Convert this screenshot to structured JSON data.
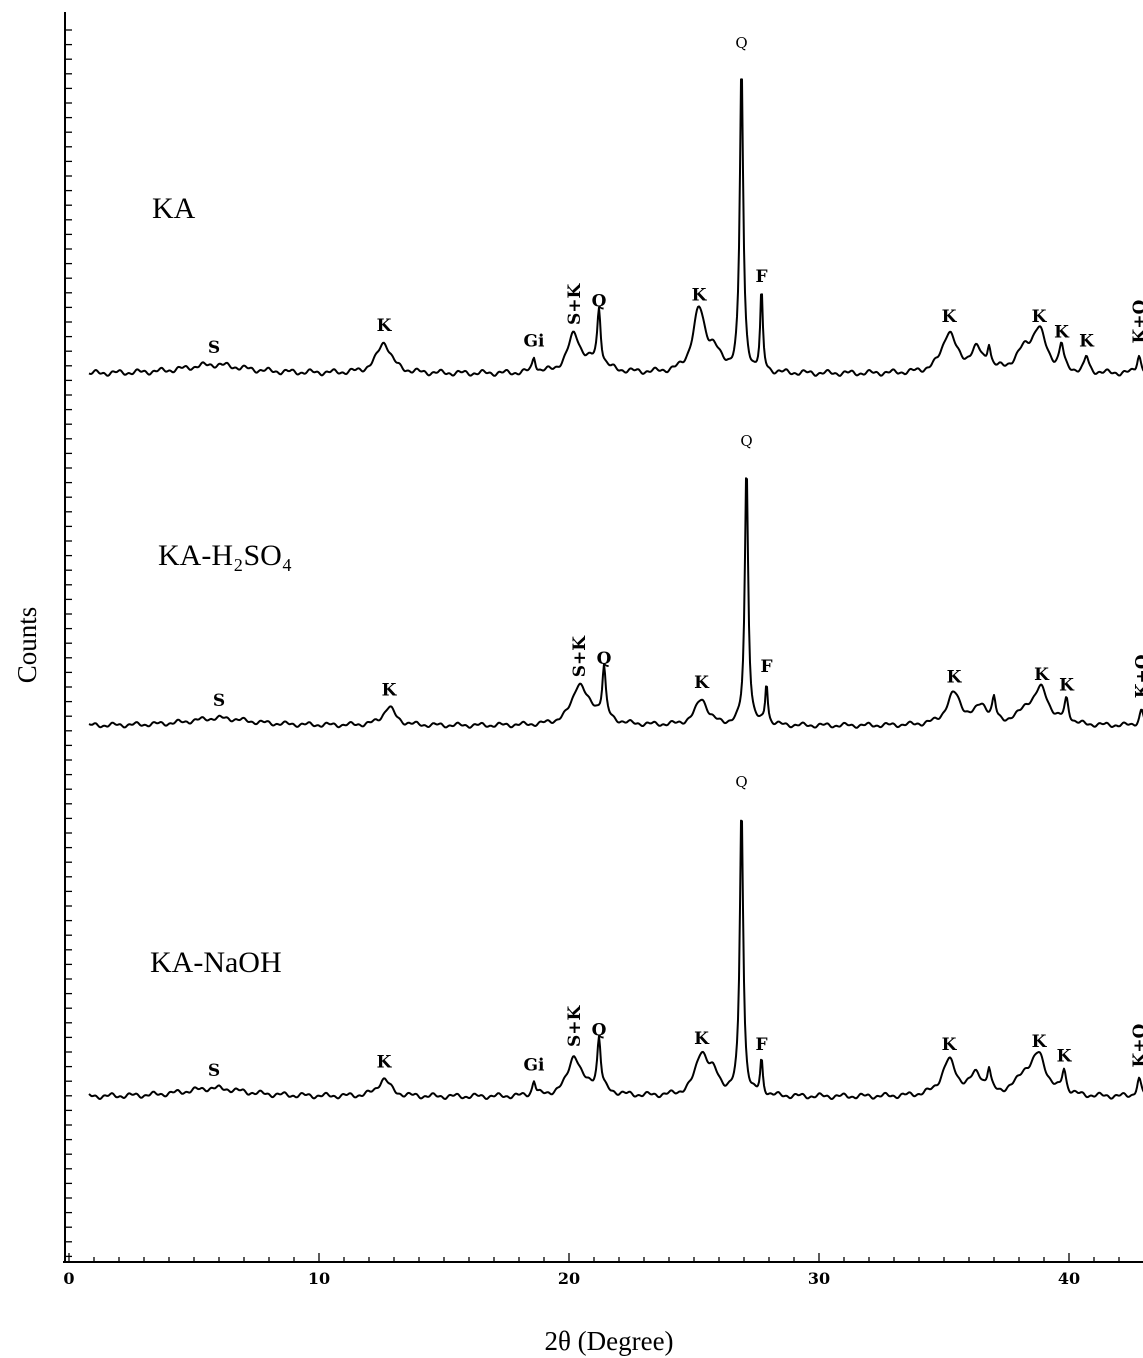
{
  "chart_data": {
    "type": "line",
    "title": "",
    "xlabel": "2θ (Degree)",
    "ylabel": "Counts",
    "xlim": [
      0,
      45
    ],
    "xticks": [
      0,
      10,
      20,
      30,
      40
    ],
    "grid": false,
    "legend": "none",
    "series": [
      {
        "name": "KA",
        "peaks": [
          {
            "x": 5.8,
            "h": 0.03,
            "w": 1.5,
            "label": "S"
          },
          {
            "x": 12.6,
            "h": 0.1,
            "w": 0.35,
            "label": "K"
          },
          {
            "x": 18.6,
            "h": 0.05,
            "w": 0.08,
            "label": "Gi"
          },
          {
            "x": 20.2,
            "h": 0.12,
            "w": 0.3,
            "label": "S+K"
          },
          {
            "x": 21.0,
            "h": 0.03,
            "w": 0.6,
            "label": ""
          },
          {
            "x": 21.2,
            "h": 0.18,
            "w": 0.08,
            "label": "Q"
          },
          {
            "x": 25.2,
            "h": 0.2,
            "w": 0.3,
            "label": "K"
          },
          {
            "x": 25.8,
            "h": 0.06,
            "w": 0.3,
            "label": ""
          },
          {
            "x": 26.9,
            "h": 1.0,
            "w": 0.08,
            "label": "Q"
          },
          {
            "x": 27.7,
            "h": 0.26,
            "w": 0.06,
            "label": "F"
          },
          {
            "x": 35.2,
            "h": 0.13,
            "w": 0.35,
            "label": "K"
          },
          {
            "x": 36.3,
            "h": 0.07,
            "w": 0.3,
            "label": ""
          },
          {
            "x": 36.8,
            "h": 0.07,
            "w": 0.08,
            "label": ""
          },
          {
            "x": 38.2,
            "h": 0.06,
            "w": 0.4,
            "label": ""
          },
          {
            "x": 38.8,
            "h": 0.13,
            "w": 0.35,
            "label": "K"
          },
          {
            "x": 39.7,
            "h": 0.08,
            "w": 0.1,
            "label": "K"
          },
          {
            "x": 40.7,
            "h": 0.05,
            "w": 0.1,
            "label": "K"
          },
          {
            "x": 42.8,
            "h": 0.06,
            "w": 0.1,
            "label": "K+Q"
          }
        ]
      },
      {
        "name": "KA-H₂SO₄",
        "peaks": [
          {
            "x": 6.0,
            "h": 0.03,
            "w": 1.5,
            "label": "S"
          },
          {
            "x": 12.8,
            "h": 0.07,
            "w": 0.3,
            "label": "K"
          },
          {
            "x": 20.4,
            "h": 0.14,
            "w": 0.35,
            "label": "S+K"
          },
          {
            "x": 21.0,
            "h": 0.04,
            "w": 0.6,
            "label": ""
          },
          {
            "x": 21.4,
            "h": 0.19,
            "w": 0.08,
            "label": "Q"
          },
          {
            "x": 25.3,
            "h": 0.1,
            "w": 0.3,
            "label": "K"
          },
          {
            "x": 27.1,
            "h": 1.0,
            "w": 0.08,
            "label": "Q"
          },
          {
            "x": 27.9,
            "h": 0.16,
            "w": 0.06,
            "label": "F"
          },
          {
            "x": 35.4,
            "h": 0.12,
            "w": 0.35,
            "label": "K"
          },
          {
            "x": 36.5,
            "h": 0.07,
            "w": 0.3,
            "label": ""
          },
          {
            "x": 37.0,
            "h": 0.08,
            "w": 0.08,
            "label": ""
          },
          {
            "x": 38.3,
            "h": 0.05,
            "w": 0.4,
            "label": ""
          },
          {
            "x": 38.9,
            "h": 0.13,
            "w": 0.35,
            "label": "K"
          },
          {
            "x": 39.9,
            "h": 0.09,
            "w": 0.1,
            "label": "K"
          },
          {
            "x": 42.9,
            "h": 0.06,
            "w": 0.1,
            "label": "K+Q"
          }
        ]
      },
      {
        "name": "KA-NaOH",
        "peaks": [
          {
            "x": 5.8,
            "h": 0.03,
            "w": 1.5,
            "label": "S"
          },
          {
            "x": 12.6,
            "h": 0.06,
            "w": 0.3,
            "label": "K"
          },
          {
            "x": 18.6,
            "h": 0.05,
            "w": 0.08,
            "label": "Gi"
          },
          {
            "x": 20.2,
            "h": 0.13,
            "w": 0.3,
            "label": "S+K"
          },
          {
            "x": 21.0,
            "h": 0.03,
            "w": 0.6,
            "label": ""
          },
          {
            "x": 21.2,
            "h": 0.17,
            "w": 0.08,
            "label": "Q"
          },
          {
            "x": 25.3,
            "h": 0.14,
            "w": 0.3,
            "label": "K"
          },
          {
            "x": 25.8,
            "h": 0.06,
            "w": 0.3,
            "label": ""
          },
          {
            "x": 26.9,
            "h": 1.0,
            "w": 0.08,
            "label": "Q"
          },
          {
            "x": 27.7,
            "h": 0.12,
            "w": 0.06,
            "label": "F"
          },
          {
            "x": 35.2,
            "h": 0.12,
            "w": 0.35,
            "label": "K"
          },
          {
            "x": 36.3,
            "h": 0.07,
            "w": 0.3,
            "label": ""
          },
          {
            "x": 36.8,
            "h": 0.07,
            "w": 0.08,
            "label": ""
          },
          {
            "x": 38.2,
            "h": 0.06,
            "w": 0.4,
            "label": ""
          },
          {
            "x": 38.8,
            "h": 0.13,
            "w": 0.35,
            "label": "K"
          },
          {
            "x": 39.8,
            "h": 0.08,
            "w": 0.1,
            "label": "K"
          },
          {
            "x": 42.8,
            "h": 0.06,
            "w": 0.1,
            "label": "K+Q"
          }
        ]
      }
    ]
  }
}
